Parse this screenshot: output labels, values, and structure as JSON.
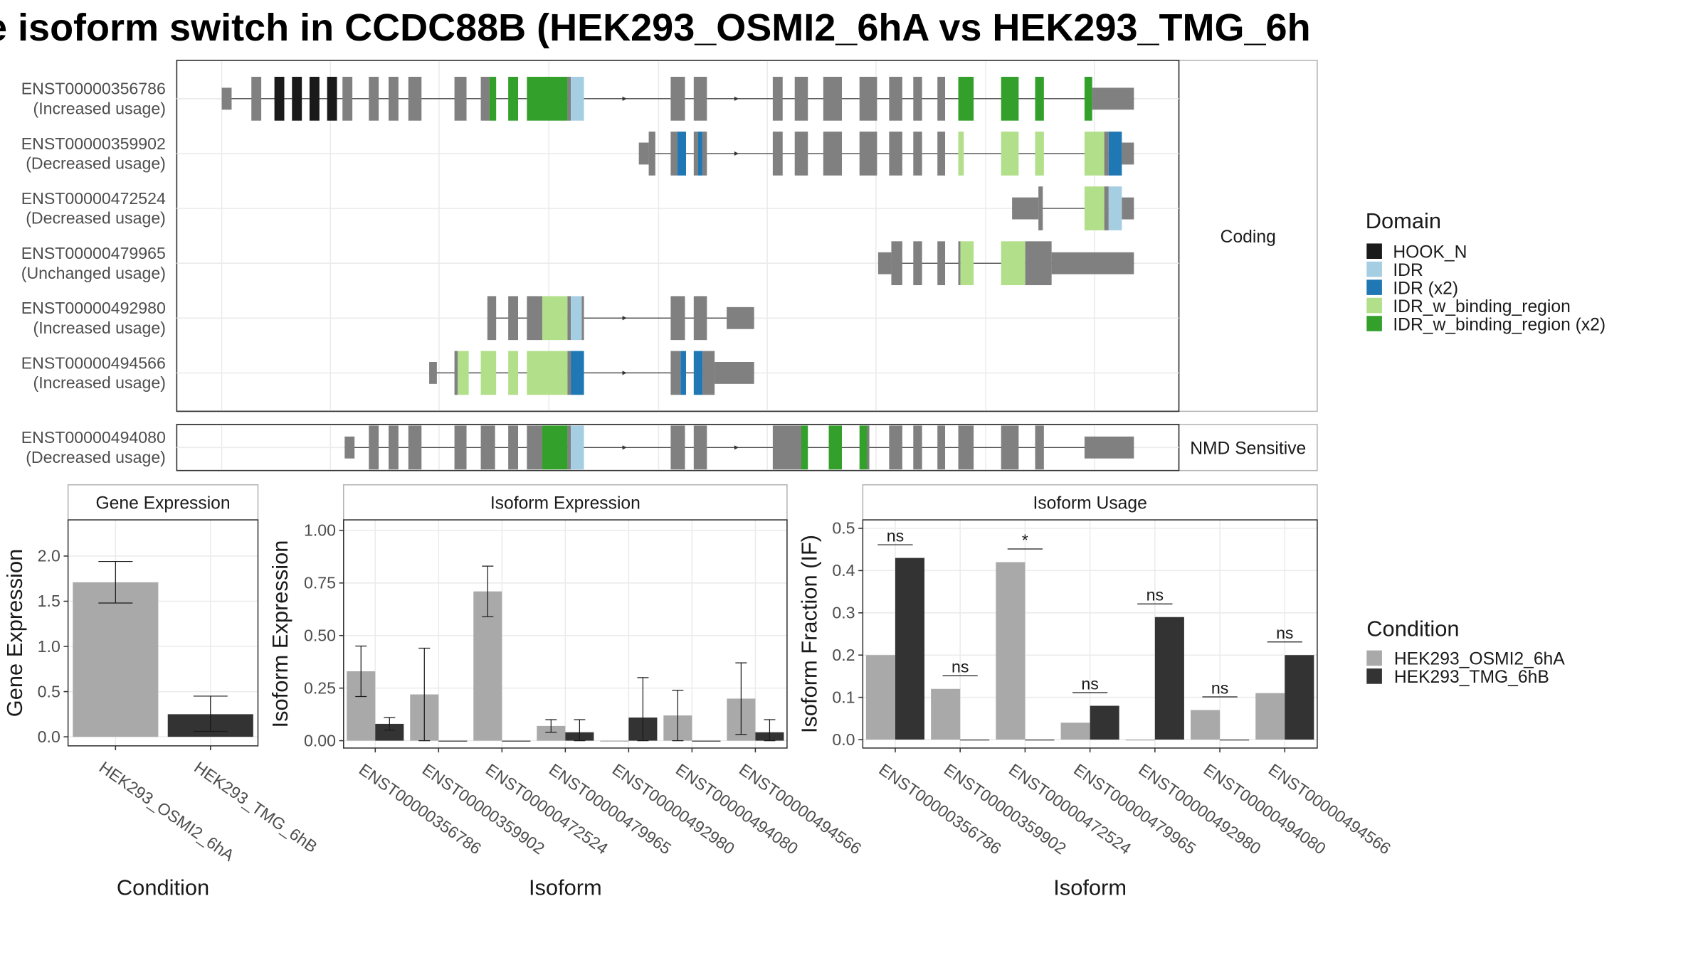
{
  "title": "e isoform switch in CCDC88B (HEK293_OSMI2_6hA vs HEK293_TMG_6h",
  "colors": {
    "exon": "#808080",
    "HOOK_N": "#1a1a1a",
    "IDR": "#a6cee3",
    "IDR (x2)": "#1f78b4",
    "IDR_w_binding_region": "#b2df8a",
    "IDR_w_binding_region (x2)": "#33a02c",
    "HEK293_OSMI2_6hA": "#a9a9a9",
    "HEK293_TMG_6hB": "#333333"
  },
  "chart_data": [
    {
      "type": "gene-structure",
      "panels": [
        "Coding",
        "NMD Sensitive"
      ],
      "isoforms": [
        {
          "id": "ENST00000356786",
          "usage": "(Increased usage)",
          "panel": "Coding",
          "exons": [
            [
              202,
              211,
              "exon",
              "t"
            ],
            [
              229,
              238,
              "exon"
            ],
            [
              250,
              259,
              "HOOK_N"
            ],
            [
              266,
              275,
              "HOOK_N"
            ],
            [
              282,
              291,
              "HOOK_N"
            ],
            [
              298,
              307,
              "HOOK_N"
            ],
            [
              312,
              321,
              "exon"
            ],
            [
              336,
              345,
              "exon"
            ],
            [
              354,
              363,
              "exon"
            ],
            [
              372,
              384,
              "exon"
            ],
            [
              414,
              425,
              "exon"
            ],
            [
              438,
              446,
              "exon"
            ],
            [
              446,
              452,
              "IDR_w_binding_region (x2)"
            ],
            [
              463,
              472,
              "IDR_w_binding_region (x2)"
            ],
            [
              480,
              517,
              "IDR_w_binding_region (x2)"
            ],
            [
              517,
              520,
              "exon"
            ],
            [
              520,
              532,
              "IDR"
            ],
            [
              611,
              624,
              "exon"
            ],
            [
              632,
              644,
              "exon"
            ],
            [
              704,
              713,
              "exon"
            ],
            [
              724,
              736,
              "exon"
            ],
            [
              750,
              767,
              "exon"
            ],
            [
              783,
              799,
              "exon"
            ],
            [
              810,
              822,
              "exon"
            ],
            [
              832,
              840,
              "exon"
            ],
            [
              854,
              861,
              "exon"
            ],
            [
              873,
              887,
              "IDR_w_binding_region (x2)"
            ],
            [
              912,
              928,
              "IDR_w_binding_region (x2)"
            ],
            [
              943,
              951,
              "IDR_w_binding_region (x2)"
            ],
            [
              988,
              995,
              "IDR_w_binding_region (x2)"
            ],
            [
              995,
              1033,
              "exon",
              "t"
            ]
          ],
          "arrows": [
            570,
            672
          ]
        },
        {
          "id": "ENST00000359902",
          "usage": "(Decreased usage)",
          "panel": "Coding",
          "exons": [
            [
              582,
              591,
              "exon",
              "t"
            ],
            [
              591,
              597,
              "exon"
            ],
            [
              611,
              617,
              "exon"
            ],
            [
              617,
              625,
              "IDR (x2)"
            ],
            [
              632,
              636,
              "exon"
            ],
            [
              636,
              640,
              "IDR (x2)"
            ],
            [
              640,
              644,
              "exon"
            ],
            [
              704,
              713,
              "exon"
            ],
            [
              724,
              736,
              "exon"
            ],
            [
              750,
              767,
              "exon"
            ],
            [
              783,
              799,
              "exon"
            ],
            [
              810,
              822,
              "exon"
            ],
            [
              832,
              840,
              "exon"
            ],
            [
              854,
              861,
              "exon"
            ],
            [
              873,
              878,
              "IDR_w_binding_region"
            ],
            [
              912,
              928,
              "IDR_w_binding_region"
            ],
            [
              943,
              951,
              "IDR_w_binding_region"
            ],
            [
              988,
              1006,
              "IDR_w_binding_region"
            ],
            [
              1006,
              1010,
              "exon"
            ],
            [
              1010,
              1022,
              "IDR (x2)"
            ],
            [
              1022,
              1033,
              "exon",
              "t"
            ]
          ],
          "arrows": [
            672
          ]
        },
        {
          "id": "ENST00000472524",
          "usage": "(Decreased usage)",
          "panel": "Coding",
          "exons": [
            [
              922,
              946,
              "exon",
              "t"
            ],
            [
              946,
              950,
              "exon"
            ],
            [
              988,
              1006,
              "IDR_w_binding_region"
            ],
            [
              1006,
              1010,
              "exon"
            ],
            [
              1010,
              1022,
              "IDR"
            ],
            [
              1022,
              1033,
              "exon",
              "t"
            ]
          ],
          "arrows": []
        },
        {
          "id": "ENST00000479965",
          "usage": "(Unchanged usage)",
          "panel": "Coding",
          "exons": [
            [
              800,
              812,
              "exon",
              "t"
            ],
            [
              812,
              822,
              "exon"
            ],
            [
              832,
              840,
              "exon"
            ],
            [
              854,
              861,
              "exon"
            ],
            [
              873,
              875,
              "exon"
            ],
            [
              875,
              887,
              "IDR_w_binding_region"
            ],
            [
              912,
              934,
              "IDR_w_binding_region"
            ],
            [
              934,
              958,
              "exon"
            ],
            [
              958,
              1033,
              "exon",
              "t"
            ]
          ],
          "arrows": []
        },
        {
          "id": "ENST00000492980",
          "usage": "(Increased usage)",
          "panel": "Coding",
          "exons": [
            [
              444,
              452,
              "exon"
            ],
            [
              463,
              472,
              "exon"
            ],
            [
              480,
              494,
              "exon"
            ],
            [
              494,
              517,
              "IDR_w_binding_region"
            ],
            [
              517,
              520,
              "exon"
            ],
            [
              520,
              530,
              "IDR"
            ],
            [
              530,
              532,
              "exon"
            ],
            [
              611,
              624,
              "exon"
            ],
            [
              632,
              644,
              "exon"
            ],
            [
              662,
              687,
              "exon",
              "t"
            ]
          ],
          "arrows": [
            570
          ]
        },
        {
          "id": "ENST00000494566",
          "usage": "(Increased usage)",
          "panel": "Coding",
          "exons": [
            [
              391,
              398,
              "exon",
              "t"
            ],
            [
              414,
              417,
              "exon"
            ],
            [
              417,
              427,
              "IDR_w_binding_region"
            ],
            [
              438,
              452,
              "IDR_w_binding_region"
            ],
            [
              463,
              472,
              "IDR_w_binding_region"
            ],
            [
              480,
              517,
              "IDR_w_binding_region"
            ],
            [
              517,
              520,
              "exon"
            ],
            [
              520,
              532,
              "IDR (x2)"
            ],
            [
              611,
              620,
              "exon"
            ],
            [
              620,
              625,
              "IDR (x2)"
            ],
            [
              632,
              640,
              "IDR (x2)"
            ],
            [
              640,
              651,
              "exon"
            ],
            [
              651,
              687,
              "exon",
              "t"
            ]
          ],
          "arrows": [
            570
          ]
        },
        {
          "id": "ENST00000494080",
          "usage": "(Decreased usage)",
          "panel": "NMD Sensitive",
          "exons": [
            [
              314,
              323,
              "exon",
              "t"
            ],
            [
              336,
              345,
              "exon"
            ],
            [
              354,
              363,
              "exon"
            ],
            [
              372,
              384,
              "exon"
            ],
            [
              414,
              425,
              "exon"
            ],
            [
              438,
              451,
              "exon"
            ],
            [
              463,
              472,
              "exon"
            ],
            [
              480,
              494,
              "exon"
            ],
            [
              494,
              517,
              "IDR_w_binding_region (x2)"
            ],
            [
              517,
              520,
              "exon"
            ],
            [
              520,
              532,
              "IDR"
            ],
            [
              611,
              624,
              "exon"
            ],
            [
              632,
              644,
              "exon"
            ],
            [
              704,
              730,
              "exon"
            ],
            [
              730,
              736,
              "IDR_w_binding_region (x2)"
            ],
            [
              755,
              767,
              "IDR_w_binding_region (x2)"
            ],
            [
              783,
              790,
              "IDR_w_binding_region (x2)"
            ],
            [
              790,
              792,
              "exon"
            ],
            [
              810,
              822,
              "exon"
            ],
            [
              832,
              840,
              "exon"
            ],
            [
              854,
              861,
              "exon"
            ],
            [
              873,
              887,
              "exon"
            ],
            [
              912,
              928,
              "exon"
            ],
            [
              943,
              951,
              "exon"
            ],
            [
              988,
              1033,
              "exon",
              "t"
            ]
          ],
          "arrows": [
            570,
            672
          ]
        }
      ],
      "legend_title": "Domain",
      "legend": [
        "HOOK_N",
        "IDR",
        "IDR (x2)",
        "IDR_w_binding_region",
        "IDR_w_binding_region (x2)"
      ]
    },
    {
      "type": "bar",
      "title": "Gene Expression",
      "xlabel": "Condition",
      "ylabel": "Gene Expression",
      "ylim": [
        -0.1,
        2.4
      ],
      "yticks": [
        "0.0",
        "0.5",
        "1.0",
        "1.5",
        "2.0"
      ],
      "categories": [
        "HEK293_OSMI2_6hA",
        "HEK293_TMG_6hB"
      ],
      "values": [
        1.71,
        0.25
      ],
      "errors": [
        [
          1.48,
          1.94
        ],
        [
          0.06,
          0.45
        ]
      ]
    },
    {
      "type": "bar",
      "title": "Isoform Expression",
      "xlabel": "Isoform",
      "ylabel": "Isoform Expression",
      "ylim": [
        -0.035,
        1.05
      ],
      "yticks": [
        "0.00",
        "0.25",
        "0.50",
        "0.75",
        "1.00"
      ],
      "categories": [
        "ENST00000356786",
        "ENST00000359902",
        "ENST00000472524",
        "ENST00000479965",
        "ENST00000492980",
        "ENST00000494080",
        "ENST00000494566"
      ],
      "series": [
        {
          "name": "HEK293_OSMI2_6hA",
          "values": [
            0.33,
            0.22,
            0.71,
            0.07,
            0.0,
            0.12,
            0.2
          ],
          "errors": [
            [
              0.21,
              0.45
            ],
            [
              0.0,
              0.44
            ],
            [
              0.59,
              0.83
            ],
            [
              0.04,
              0.1
            ],
            null,
            [
              0.0,
              0.24
            ],
            [
              0.03,
              0.37
            ]
          ]
        },
        {
          "name": "HEK293_TMG_6hB",
          "values": [
            0.08,
            0.0,
            0.0,
            0.04,
            0.11,
            0.0,
            0.04
          ],
          "errors": [
            [
              0.05,
              0.11
            ],
            null,
            null,
            [
              0.0,
              0.1
            ],
            [
              0.0,
              0.3
            ],
            null,
            [
              0.0,
              0.1
            ]
          ]
        }
      ]
    },
    {
      "type": "bar",
      "title": "Isoform Usage",
      "xlabel": "Isoform",
      "ylabel": "Isoform Fraction (IF)",
      "ylim": [
        -0.02,
        0.52
      ],
      "yticks": [
        "0.0",
        "0.1",
        "0.2",
        "0.3",
        "0.4",
        "0.5"
      ],
      "categories": [
        "ENST00000356786",
        "ENST00000359902",
        "ENST00000472524",
        "ENST00000479965",
        "ENST00000492980",
        "ENST00000494080",
        "ENST00000494566"
      ],
      "series": [
        {
          "name": "HEK293_OSMI2_6hA",
          "values": [
            0.2,
            0.12,
            0.42,
            0.04,
            0.0,
            0.07,
            0.11
          ]
        },
        {
          "name": "HEK293_TMG_6hB",
          "values": [
            0.43,
            0.0,
            0.0,
            0.08,
            0.29,
            0.0,
            0.2
          ]
        }
      ],
      "significance": [
        "ns",
        "ns",
        "*",
        "ns",
        "ns",
        "ns",
        "ns"
      ],
      "legend_title": "Condition",
      "legend": [
        "HEK293_OSMI2_6hA",
        "HEK293_TMG_6hB"
      ]
    }
  ]
}
